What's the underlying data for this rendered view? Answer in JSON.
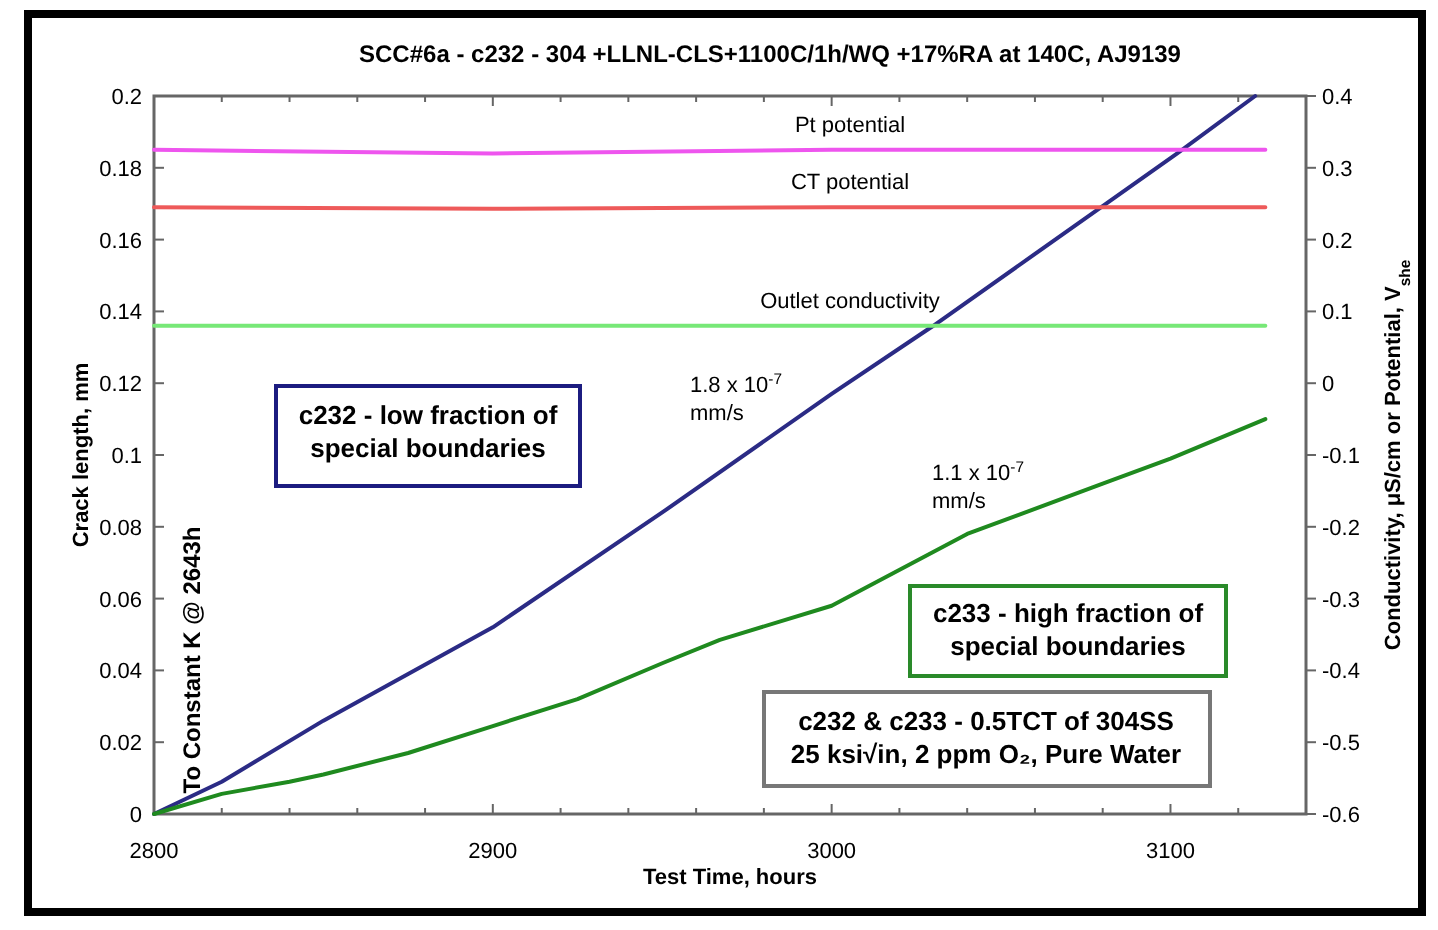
{
  "chart_data": {
    "type": "line",
    "title": "SCC#6a - c232 - 304 +LLNL-CLS+1100C/1h/WQ +17%RA at 140C, AJ9139",
    "xlabel": "Test Time, hours",
    "ylabel": "Crack length, mm",
    "y2label": "Conductivity,  μS/cm or Potential, V$_{she}$",
    "xlim": [
      2800,
      3140
    ],
    "xticks": [
      2800,
      {
        "value": 2820,
        "label": null
      },
      {
        "value": 2840,
        "label": null
      },
      {
        "value": 2860,
        "label": null
      },
      {
        "value": 2880,
        "label": null
      },
      2900,
      {
        "value": 2920,
        "label": null
      },
      {
        "value": 2940,
        "label": null
      },
      {
        "value": 2960,
        "label": null
      },
      {
        "value": 2980,
        "label": null
      },
      3000,
      {
        "value": 3020,
        "label": null
      },
      {
        "value": 3040,
        "label": null
      },
      {
        "value": 3060,
        "label": null
      },
      {
        "value": 3080,
        "label": null
      },
      3100,
      {
        "value": 3120,
        "label": null
      }
    ],
    "ylim": [
      0,
      0.2
    ],
    "yticks": [
      0,
      0.02,
      0.04,
      0.06,
      0.08,
      0.1,
      0.12,
      0.14,
      0.16,
      0.18,
      0.2
    ],
    "y2lim": [
      -0.6,
      0.4
    ],
    "y2ticks": [
      -0.6,
      -0.5,
      -0.4,
      -0.3,
      -0.2,
      -0.1,
      0,
      0.1,
      0.2,
      0.3,
      0.4
    ],
    "grid": false,
    "line_style": "solid",
    "marker": "none",
    "series": [
      {
        "color": "#2b2b85",
        "x": [
          2800,
          2820,
          2850,
          2875,
          2900,
          2950,
          3000,
          3030,
          3078,
          3102,
          3125
        ],
        "values": [
          0,
          0.009,
          0.026,
          0.039,
          0.052,
          0.084,
          0.117,
          0.136,
          0.168,
          0.184,
          0.2
        ]
      },
      {
        "color": "#1f8a1f",
        "x": [
          2800,
          2820,
          2840,
          2850,
          2875,
          2900,
          2925,
          2950,
          2967,
          3000,
          3040,
          3080,
          3100,
          3128
        ],
        "values": [
          0,
          0.0056,
          0.009,
          0.011,
          0.017,
          0.0245,
          0.032,
          0.042,
          0.0485,
          0.058,
          0.078,
          0.092,
          0.099,
          0.11
        ]
      },
      {
        "name": "Pt potential",
        "color": "#ee55ee",
        "axis": "y2",
        "x": [
          2800,
          2900,
          3000,
          3128
        ],
        "values": [
          0.325,
          0.32,
          0.325,
          0.325
        ]
      },
      {
        "name": "CT potential",
        "color": "#ee5a5a",
        "axis": "y2",
        "x": [
          2800,
          2900,
          3000,
          3128
        ],
        "values": [
          0.245,
          0.243,
          0.245,
          0.245
        ]
      },
      {
        "name": "Outlet conductivity",
        "color": "#77e877",
        "axis": "y2",
        "x": [
          2800,
          3128
        ],
        "values": [
          0.08,
          0.08
        ]
      }
    ],
    "annotations": [
      "1.8 x 10$^{-7}$\nmm/s",
      "1.1 x 10$^{-7}$\nmm/s",
      "To Constant K @ 2643h",
      "c232 - low fraction of\nspecial boundaries",
      "c233 - high fraction of\nspecial boundaries",
      "c232 & c233 - 0.5TCT of 304SS\n25 ksi√in, 2 ppm O₂, Pure Water"
    ]
  }
}
